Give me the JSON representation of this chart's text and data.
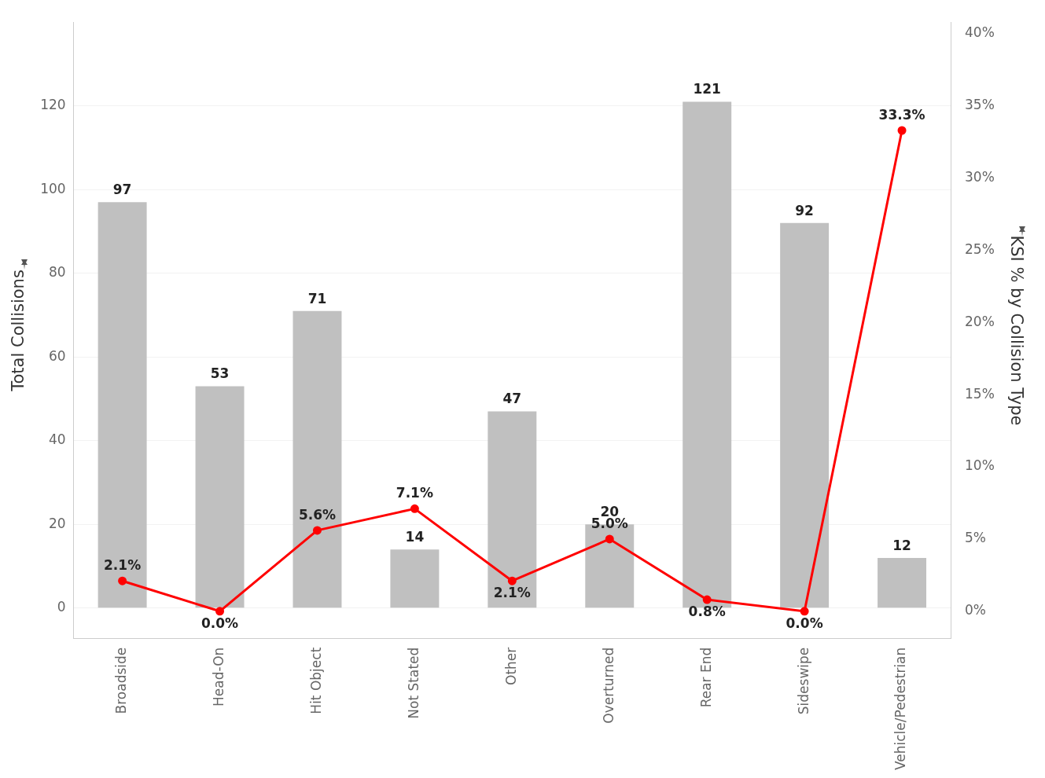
{
  "chart_data": {
    "type": "bar",
    "categories": [
      "Broadside",
      "Head-On",
      "Hit Object",
      "Not Stated",
      "Other",
      "Overturned",
      "Rear End",
      "Sideswipe",
      "Vehicle/Pedestrian"
    ],
    "ylabel": "Total Collisions",
    "y2label": "KSI % by Collision Type",
    "series": [
      {
        "color": "#c0c0c0",
        "values": [
          97,
          53,
          71,
          14,
          47,
          20,
          121,
          92,
          12
        ],
        "value_labels": [
          "97",
          "53",
          "71",
          "14",
          "47",
          "20",
          "121",
          "92",
          "12"
        ]
      },
      {
        "type": "line",
        "axis": "y2",
        "color": "#ff0000",
        "marker": "circle",
        "values": [
          2.1,
          0.0,
          5.6,
          7.1,
          2.1,
          5.0,
          0.8,
          0.0,
          33.3
        ],
        "value_labels": [
          "2.1%",
          "0.0%",
          "5.6%",
          "7.1%",
          "2.1%",
          "5.0%",
          "0.8%",
          "0.0%",
          "33.3%"
        ]
      }
    ],
    "ylim": [
      -7.3,
      140
    ],
    "yticks": [
      0,
      20,
      40,
      60,
      80,
      100,
      120
    ],
    "y2lim": [
      -1.9,
      40.8
    ],
    "y2ticks": [
      {
        "value": 0,
        "label": "0%"
      },
      {
        "value": 5,
        "label": "5%"
      },
      {
        "value": 10,
        "label": "10%"
      },
      {
        "value": 15,
        "label": "15%"
      },
      {
        "value": 20,
        "label": "20%"
      },
      {
        "value": 25,
        "label": "25%"
      },
      {
        "value": 30,
        "label": "30%"
      },
      {
        "value": 35,
        "label": "35%"
      },
      {
        "value": 40,
        "label": "40%"
      }
    ],
    "grid": "y",
    "legend": false
  }
}
